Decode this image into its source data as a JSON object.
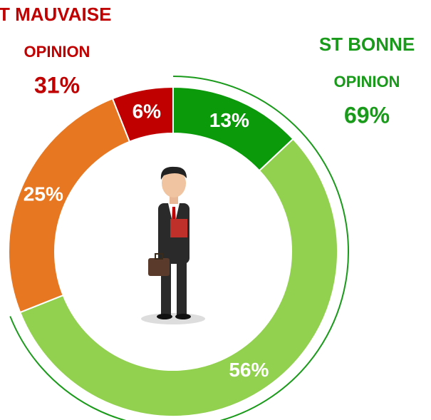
{
  "chart_data": {
    "type": "donut",
    "values": [
      13,
      56,
      25,
      6
    ],
    "value_labels": [
      "13%",
      "56%",
      "25%",
      "6%"
    ],
    "colors": [
      "#0a9a0a",
      "#92d050",
      "#e87722",
      "#c00000"
    ],
    "groups": [
      {
        "lines": [
          "ST BONNE",
          "OPINION"
        ],
        "value": 69,
        "value_label": "69%",
        "color": "#1a9a1a",
        "show_arc": true
      },
      {
        "lines": [
          "T MAUVAISE",
          "OPINION"
        ],
        "value": 31,
        "value_label": "31%",
        "color": "#c00000",
        "show_arc": false
      }
    ]
  }
}
